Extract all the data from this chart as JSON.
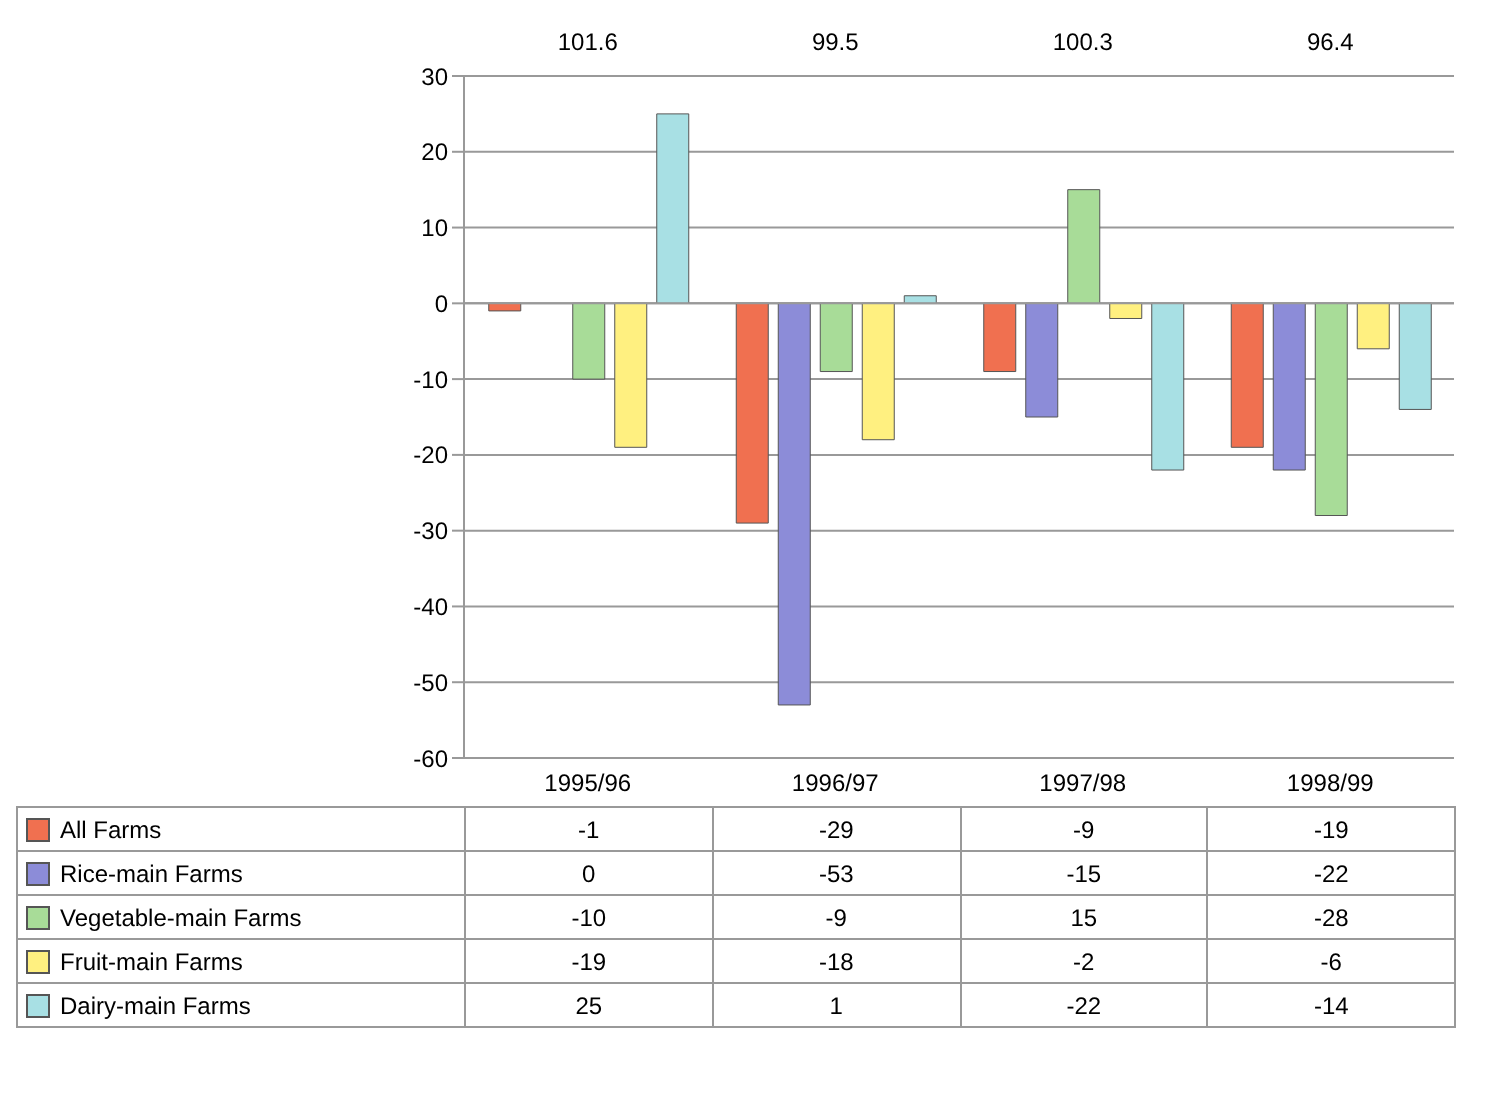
{
  "chart_data": {
    "type": "bar",
    "categories": [
      "1995/96",
      "1996/97",
      "1997/98",
      "1998/99"
    ],
    "series": [
      {
        "name": "All Farms",
        "color": "#f07050",
        "values": [
          -1,
          -29,
          -9,
          -19
        ]
      },
      {
        "name": "Rice-main Farms",
        "color": "#8c8cd8",
        "values": [
          0,
          -53,
          -15,
          -22
        ]
      },
      {
        "name": "Vegetable-main Farms",
        "color": "#a8dc98",
        "values": [
          -10,
          -9,
          15,
          -28
        ]
      },
      {
        "name": "Fruit-main Farms",
        "color": "#fff080",
        "values": [
          -19,
          -18,
          -2,
          -6
        ]
      },
      {
        "name": "Dairy-main Farms",
        "color": "#a8e0e4",
        "values": [
          25,
          1,
          -22,
          -14
        ]
      }
    ],
    "ylim": [
      -60,
      30
    ],
    "yticks": [
      -60,
      -50,
      -40,
      -30,
      -20,
      -10,
      0,
      10,
      20,
      30
    ],
    "grid": "y",
    "legend": "bottom",
    "data_labels": true,
    "annotations": [
      "101.6",
      "99.5",
      "100.3",
      "96.4"
    ]
  }
}
